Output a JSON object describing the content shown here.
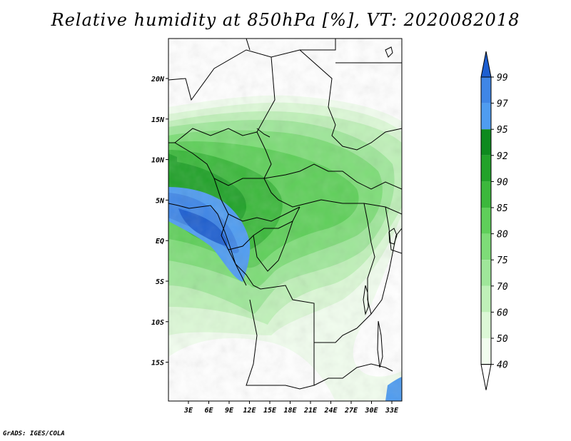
{
  "title": "Relative humidity at 850hPa [%], VT: 2020082018",
  "credit": "GrADS: IGES/COLA",
  "lat_ticks": [
    "20N",
    "15N",
    "10N",
    "5N",
    "EQ",
    "5S",
    "10S",
    "15S"
  ],
  "lon_ticks": [
    "3E",
    "6E",
    "9E",
    "12E",
    "15E",
    "18E",
    "21E",
    "24E",
    "27E",
    "30E",
    "33E"
  ],
  "colorbar": {
    "levels": [
      "99",
      "97",
      "95",
      "92",
      "90",
      "85",
      "80",
      "75",
      "70",
      "60",
      "50",
      "40"
    ],
    "colors": [
      "#1e5fd0",
      "#3f86e6",
      "#4f9cf0",
      "#0e8a1e",
      "#22a22a",
      "#3cb83c",
      "#5fcf5a",
      "#7edc78",
      "#9fe69a",
      "#bff0b8",
      "#dcf8d6",
      "#f1fdee",
      "#ffffff"
    ]
  },
  "colors": {
    "land_fill": "#ffffff",
    "border": "#000000"
  }
}
